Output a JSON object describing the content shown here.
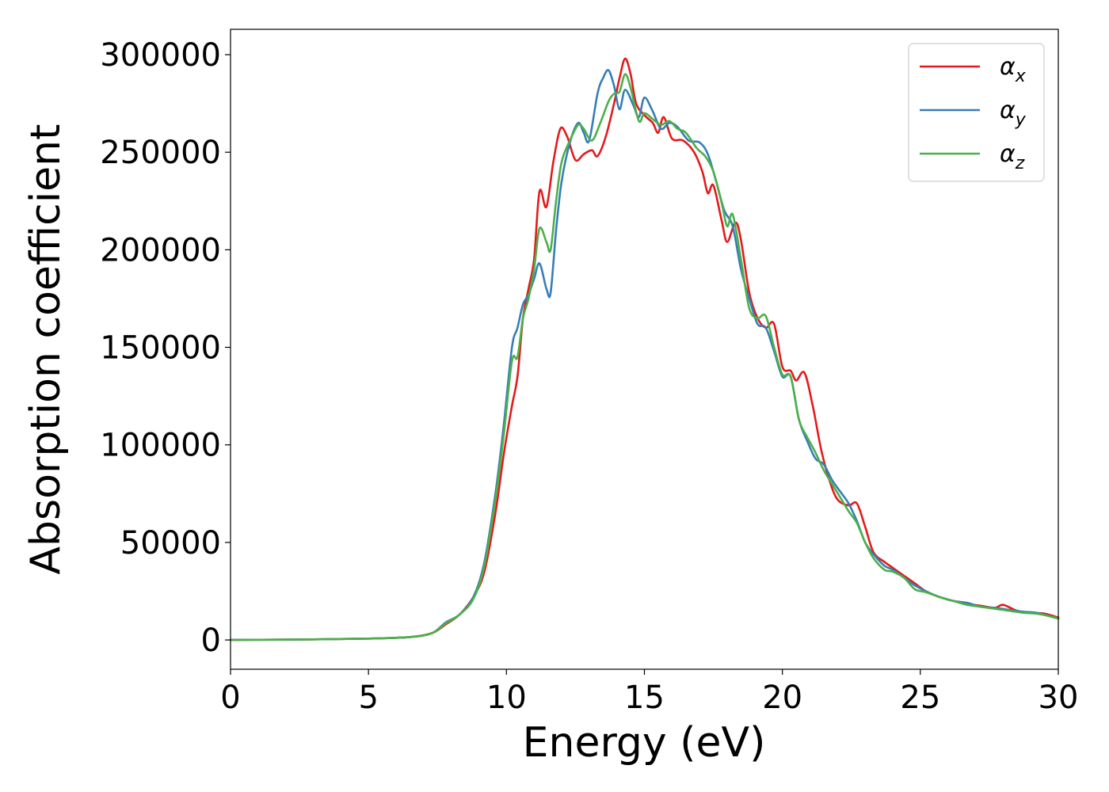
{
  "chart_data": {
    "type": "line",
    "title": "",
    "xlabel": "Energy (eV)",
    "ylabel": "Absorption coefficient",
    "xlim": [
      0,
      30
    ],
    "ylim": [
      -15000,
      313000
    ],
    "xticks": [
      0,
      5,
      10,
      15,
      20,
      25,
      30
    ],
    "yticks": [
      0,
      50000,
      100000,
      150000,
      200000,
      250000,
      300000
    ],
    "grid": false,
    "legend_position": "top-right",
    "series": [
      {
        "name": "αx",
        "symbol": "α",
        "subscript": "x",
        "color": "#e41a1c",
        "points": [
          [
            0,
            0
          ],
          [
            3,
            300
          ],
          [
            5,
            700
          ],
          [
            6.5,
            1500
          ],
          [
            7.3,
            3500
          ],
          [
            7.8,
            8000
          ],
          [
            8.3,
            13000
          ],
          [
            8.8,
            22000
          ],
          [
            9.2,
            35000
          ],
          [
            9.6,
            65000
          ],
          [
            9.9,
            95000
          ],
          [
            10.2,
            120000
          ],
          [
            10.4,
            135000
          ],
          [
            10.6,
            165000
          ],
          [
            10.8,
            180000
          ],
          [
            11.0,
            195000
          ],
          [
            11.2,
            230000
          ],
          [
            11.45,
            222000
          ],
          [
            11.7,
            245000
          ],
          [
            11.95,
            262000
          ],
          [
            12.2,
            258000
          ],
          [
            12.5,
            246000
          ],
          [
            12.8,
            249000
          ],
          [
            13.1,
            251000
          ],
          [
            13.3,
            248000
          ],
          [
            13.6,
            258000
          ],
          [
            13.9,
            275000
          ],
          [
            14.1,
            288000
          ],
          [
            14.3,
            298000
          ],
          [
            14.5,
            290000
          ],
          [
            14.7,
            275000
          ],
          [
            15.0,
            269000
          ],
          [
            15.3,
            265000
          ],
          [
            15.5,
            260000
          ],
          [
            15.7,
            268000
          ],
          [
            16.0,
            257000
          ],
          [
            16.4,
            256000
          ],
          [
            16.8,
            250000
          ],
          [
            17.1,
            240000
          ],
          [
            17.3,
            229000
          ],
          [
            17.5,
            233000
          ],
          [
            17.8,
            215000
          ],
          [
            18.0,
            204000
          ],
          [
            18.3,
            214000
          ],
          [
            18.5,
            205000
          ],
          [
            18.8,
            178000
          ],
          [
            19.1,
            165000
          ],
          [
            19.4,
            160000
          ],
          [
            19.7,
            162000
          ],
          [
            20.0,
            140000
          ],
          [
            20.3,
            138000
          ],
          [
            20.5,
            133000
          ],
          [
            20.8,
            137000
          ],
          [
            21.1,
            120000
          ],
          [
            21.4,
            98000
          ],
          [
            21.7,
            82000
          ],
          [
            22.0,
            72000
          ],
          [
            22.4,
            69000
          ],
          [
            22.7,
            70000
          ],
          [
            23.0,
            58000
          ],
          [
            23.3,
            45000
          ],
          [
            23.7,
            40000
          ],
          [
            24.0,
            37000
          ],
          [
            24.4,
            33000
          ],
          [
            24.8,
            29000
          ],
          [
            25.2,
            25000
          ],
          [
            25.7,
            22000
          ],
          [
            26.2,
            20000
          ],
          [
            26.7,
            18500
          ],
          [
            27.2,
            17500
          ],
          [
            27.7,
            16500
          ],
          [
            28.0,
            18000
          ],
          [
            28.5,
            15000
          ],
          [
            29.0,
            14000
          ],
          [
            29.5,
            13500
          ],
          [
            30,
            11500
          ]
        ]
      },
      {
        "name": "αy",
        "symbol": "α",
        "subscript": "y",
        "color": "#377eb8",
        "points": [
          [
            0,
            0
          ],
          [
            3,
            300
          ],
          [
            5,
            700
          ],
          [
            6.5,
            1500
          ],
          [
            7.3,
            3500
          ],
          [
            7.8,
            9000
          ],
          [
            8.3,
            13000
          ],
          [
            8.8,
            22000
          ],
          [
            9.2,
            40000
          ],
          [
            9.6,
            75000
          ],
          [
            9.9,
            110000
          ],
          [
            10.2,
            150000
          ],
          [
            10.4,
            160000
          ],
          [
            10.6,
            172000
          ],
          [
            10.8,
            177000
          ],
          [
            11.0,
            185000
          ],
          [
            11.2,
            193000
          ],
          [
            11.45,
            180000
          ],
          [
            11.6,
            178000
          ],
          [
            11.8,
            210000
          ],
          [
            12.0,
            235000
          ],
          [
            12.3,
            255000
          ],
          [
            12.6,
            265000
          ],
          [
            12.8,
            260000
          ],
          [
            13.0,
            256000
          ],
          [
            13.3,
            280000
          ],
          [
            13.5,
            288000
          ],
          [
            13.7,
            292000
          ],
          [
            13.9,
            284000
          ],
          [
            14.1,
            272000
          ],
          [
            14.3,
            282000
          ],
          [
            14.6,
            274000
          ],
          [
            14.8,
            268000
          ],
          [
            15.0,
            278000
          ],
          [
            15.3,
            271000
          ],
          [
            15.6,
            262000
          ],
          [
            15.9,
            265000
          ],
          [
            16.2,
            263000
          ],
          [
            16.6,
            256000
          ],
          [
            17.0,
            255000
          ],
          [
            17.3,
            249000
          ],
          [
            17.6,
            235000
          ],
          [
            17.9,
            220000
          ],
          [
            18.2,
            212000
          ],
          [
            18.5,
            190000
          ],
          [
            18.8,
            175000
          ],
          [
            19.1,
            162000
          ],
          [
            19.4,
            160000
          ],
          [
            19.7,
            148000
          ],
          [
            20.0,
            135000
          ],
          [
            20.3,
            135000
          ],
          [
            20.6,
            113000
          ],
          [
            20.9,
            102000
          ],
          [
            21.2,
            93000
          ],
          [
            21.5,
            90000
          ],
          [
            21.8,
            82000
          ],
          [
            22.1,
            76000
          ],
          [
            22.4,
            70000
          ],
          [
            22.7,
            61000
          ],
          [
            23.0,
            50000
          ],
          [
            23.3,
            44000
          ],
          [
            23.7,
            38000
          ],
          [
            24.0,
            36000
          ],
          [
            24.4,
            32000
          ],
          [
            24.8,
            28000
          ],
          [
            25.2,
            25000
          ],
          [
            25.7,
            22000
          ],
          [
            26.2,
            20000
          ],
          [
            26.7,
            19000
          ],
          [
            27.2,
            17000
          ],
          [
            27.7,
            16500
          ],
          [
            28.2,
            15500
          ],
          [
            28.7,
            14500
          ],
          [
            29.2,
            14000
          ],
          [
            29.6,
            12500
          ],
          [
            30,
            11000
          ]
        ]
      },
      {
        "name": "αz",
        "symbol": "α",
        "subscript": "z",
        "color": "#4daf4a",
        "points": [
          [
            0,
            0
          ],
          [
            3,
            300
          ],
          [
            5,
            700
          ],
          [
            6.5,
            1500
          ],
          [
            7.3,
            3500
          ],
          [
            7.8,
            8500
          ],
          [
            8.3,
            13000
          ],
          [
            8.8,
            21000
          ],
          [
            9.2,
            38000
          ],
          [
            9.6,
            72000
          ],
          [
            9.9,
            105000
          ],
          [
            10.2,
            143000
          ],
          [
            10.4,
            145000
          ],
          [
            10.6,
            165000
          ],
          [
            10.8,
            175000
          ],
          [
            11.0,
            190000
          ],
          [
            11.2,
            211000
          ],
          [
            11.45,
            204000
          ],
          [
            11.6,
            200000
          ],
          [
            11.8,
            225000
          ],
          [
            12.0,
            245000
          ],
          [
            12.3,
            256000
          ],
          [
            12.6,
            264000
          ],
          [
            12.8,
            262000
          ],
          [
            13.1,
            256000
          ],
          [
            13.4,
            265000
          ],
          [
            13.7,
            276000
          ],
          [
            13.9,
            280000
          ],
          [
            14.1,
            281000
          ],
          [
            14.3,
            290000
          ],
          [
            14.5,
            283000
          ],
          [
            14.8,
            266000
          ],
          [
            15.0,
            270000
          ],
          [
            15.3,
            267000
          ],
          [
            15.6,
            264000
          ],
          [
            15.9,
            266000
          ],
          [
            16.2,
            262000
          ],
          [
            16.5,
            260000
          ],
          [
            16.9,
            252000
          ],
          [
            17.2,
            248000
          ],
          [
            17.5,
            240000
          ],
          [
            17.8,
            224000
          ],
          [
            18.0,
            212000
          ],
          [
            18.2,
            218000
          ],
          [
            18.5,
            195000
          ],
          [
            18.8,
            170000
          ],
          [
            19.1,
            165000
          ],
          [
            19.4,
            166000
          ],
          [
            19.7,
            150000
          ],
          [
            20.0,
            136000
          ],
          [
            20.3,
            135000
          ],
          [
            20.6,
            113000
          ],
          [
            20.9,
            104000
          ],
          [
            21.2,
            96000
          ],
          [
            21.5,
            87000
          ],
          [
            21.8,
            80000
          ],
          [
            22.1,
            73000
          ],
          [
            22.4,
            66000
          ],
          [
            22.7,
            60000
          ],
          [
            23.0,
            50000
          ],
          [
            23.3,
            42000
          ],
          [
            23.7,
            36000
          ],
          [
            24.0,
            35000
          ],
          [
            24.4,
            32000
          ],
          [
            24.8,
            26000
          ],
          [
            25.2,
            24500
          ],
          [
            25.7,
            22000
          ],
          [
            26.2,
            20000
          ],
          [
            26.7,
            18000
          ],
          [
            27.2,
            17000
          ],
          [
            27.7,
            16000
          ],
          [
            28.2,
            15000
          ],
          [
            28.7,
            14000
          ],
          [
            29.2,
            13500
          ],
          [
            29.6,
            12500
          ],
          [
            30,
            11000
          ]
        ]
      }
    ]
  }
}
